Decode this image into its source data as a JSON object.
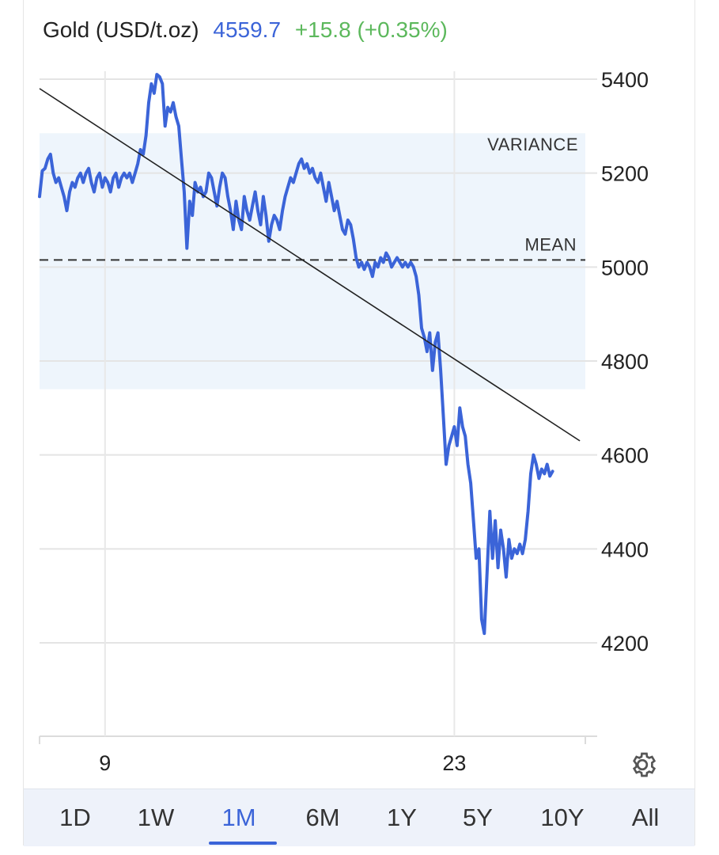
{
  "header": {
    "title": "Gold (USD/t.oz)",
    "price": "4559.7",
    "change": "+15.8 (+0.35%)",
    "price_color": "#3b64d8",
    "change_color": "#5cb85c"
  },
  "annotations": {
    "variance_label": "VARIANCE",
    "mean_label": "MEAN",
    "mean_value": 5015,
    "variance_band": [
      4740,
      5285
    ]
  },
  "settings_icon": "gear-icon",
  "range_tabs": [
    {
      "label": "1D",
      "active": false
    },
    {
      "label": "1W",
      "active": false
    },
    {
      "label": "1M",
      "active": true
    },
    {
      "label": "6M",
      "active": false
    },
    {
      "label": "1Y",
      "active": false
    },
    {
      "label": "5Y",
      "active": false
    },
    {
      "label": "10Y",
      "active": false
    },
    {
      "label": "All",
      "active": false
    }
  ],
  "chart_data": {
    "type": "line",
    "title": "Gold (USD/t.oz)",
    "xlabel": "",
    "ylabel": "",
    "ylim": [
      4000,
      5400
    ],
    "y_ticks": [
      4200,
      4400,
      4600,
      4800,
      5000,
      5200,
      5400
    ],
    "x_ticks": [
      {
        "label": "9",
        "x": 12
      },
      {
        "label": "23",
        "x": 76
      }
    ],
    "xlim": [
      0,
      100
    ],
    "grid": true,
    "line_color": "#3b64d8",
    "trendline": {
      "start": [
        0,
        5380
      ],
      "end": [
        99,
        4630
      ]
    },
    "series": [
      {
        "values": [
          [
            0,
            5150
          ],
          [
            0.5,
            5205
          ],
          [
            1,
            5210
          ],
          [
            1.5,
            5230
          ],
          [
            2,
            5240
          ],
          [
            2.5,
            5200
          ],
          [
            3,
            5180
          ],
          [
            3.5,
            5190
          ],
          [
            4,
            5170
          ],
          [
            4.5,
            5150
          ],
          [
            5,
            5120
          ],
          [
            5.5,
            5160
          ],
          [
            6,
            5180
          ],
          [
            6.5,
            5170
          ],
          [
            7,
            5190
          ],
          [
            7.5,
            5200
          ],
          [
            8,
            5180
          ],
          [
            8.5,
            5200
          ],
          [
            9,
            5210
          ],
          [
            9.5,
            5180
          ],
          [
            10,
            5160
          ],
          [
            10.5,
            5190
          ],
          [
            11,
            5200
          ],
          [
            11.5,
            5170
          ],
          [
            12,
            5190
          ],
          [
            12.5,
            5180
          ],
          [
            13,
            5160
          ],
          [
            13.5,
            5190
          ],
          [
            14,
            5200
          ],
          [
            14.5,
            5170
          ],
          [
            15,
            5190
          ],
          [
            15.5,
            5200
          ],
          [
            16,
            5190
          ],
          [
            16.5,
            5200
          ],
          [
            17,
            5180
          ],
          [
            17.5,
            5200
          ],
          [
            18,
            5220
          ],
          [
            18.5,
            5250
          ],
          [
            19,
            5240
          ],
          [
            19.5,
            5280
          ],
          [
            20,
            5350
          ],
          [
            20.5,
            5390
          ],
          [
            21,
            5370
          ],
          [
            21.5,
            5410
          ],
          [
            22,
            5405
          ],
          [
            22.5,
            5390
          ],
          [
            23,
            5300
          ],
          [
            23.5,
            5340
          ],
          [
            24,
            5330
          ],
          [
            24.5,
            5350
          ],
          [
            25,
            5320
          ],
          [
            25.5,
            5300
          ],
          [
            26,
            5230
          ],
          [
            26.5,
            5160
          ],
          [
            27,
            5040
          ],
          [
            27.5,
            5140
          ],
          [
            28,
            5110
          ],
          [
            28.5,
            5180
          ],
          [
            29,
            5160
          ],
          [
            29.5,
            5170
          ],
          [
            30,
            5150
          ],
          [
            30.5,
            5160
          ],
          [
            31,
            5200
          ],
          [
            31.5,
            5190
          ],
          [
            32,
            5160
          ],
          [
            32.5,
            5130
          ],
          [
            33,
            5170
          ],
          [
            33.5,
            5200
          ],
          [
            34,
            5190
          ],
          [
            34.5,
            5150
          ],
          [
            35,
            5120
          ],
          [
            35.5,
            5080
          ],
          [
            36,
            5140
          ],
          [
            36.5,
            5100
          ],
          [
            37,
            5080
          ],
          [
            37.5,
            5150
          ],
          [
            38,
            5120
          ],
          [
            38.5,
            5100
          ],
          [
            39,
            5130
          ],
          [
            39.5,
            5160
          ],
          [
            40,
            5120
          ],
          [
            40.5,
            5090
          ],
          [
            41,
            5150
          ],
          [
            41.5,
            5110
          ],
          [
            42,
            5055
          ],
          [
            42.5,
            5090
          ],
          [
            43,
            5110
          ],
          [
            43.5,
            5100
          ],
          [
            44,
            5080
          ],
          [
            44.5,
            5120
          ],
          [
            45,
            5150
          ],
          [
            45.5,
            5170
          ],
          [
            46,
            5190
          ],
          [
            46.5,
            5180
          ],
          [
            47,
            5200
          ],
          [
            47.5,
            5220
          ],
          [
            48,
            5230
          ],
          [
            48.5,
            5210
          ],
          [
            49,
            5220
          ],
          [
            49.5,
            5200
          ],
          [
            50,
            5210
          ],
          [
            50.5,
            5190
          ],
          [
            51,
            5180
          ],
          [
            51.5,
            5200
          ],
          [
            52,
            5170
          ],
          [
            52.5,
            5140
          ],
          [
            53,
            5180
          ],
          [
            53.5,
            5150
          ],
          [
            54,
            5120
          ],
          [
            54.5,
            5140
          ],
          [
            55,
            5110
          ],
          [
            55.5,
            5080
          ],
          [
            56,
            5070
          ],
          [
            56.5,
            5100
          ],
          [
            57,
            5090
          ],
          [
            57.5,
            5060
          ],
          [
            58,
            5020
          ],
          [
            58.5,
            5000
          ],
          [
            59,
            5010
          ],
          [
            59.5,
            4995
          ],
          [
            60,
            5010
          ],
          [
            60.5,
            5000
          ],
          [
            61,
            4980
          ],
          [
            61.5,
            5010
          ],
          [
            62,
            5000
          ],
          [
            62.5,
            5020
          ],
          [
            63,
            5010
          ],
          [
            63.5,
            5030
          ],
          [
            64,
            5020
          ],
          [
            64.5,
            5000
          ],
          [
            65,
            5010
          ],
          [
            65.5,
            5020
          ],
          [
            66,
            5010
          ],
          [
            66.5,
            5000
          ],
          [
            67,
            5010
          ],
          [
            67.5,
            5000
          ],
          [
            68,
            5010
          ],
          [
            68.5,
            5000
          ],
          [
            69,
            4980
          ],
          [
            69.5,
            4940
          ],
          [
            70,
            4870
          ],
          [
            70.5,
            4850
          ],
          [
            71,
            4820
          ],
          [
            71.5,
            4860
          ],
          [
            72,
            4780
          ],
          [
            72.5,
            4840
          ],
          [
            73,
            4860
          ],
          [
            73.5,
            4780
          ],
          [
            74,
            4680
          ],
          [
            74.5,
            4580
          ],
          [
            75,
            4620
          ],
          [
            75.5,
            4640
          ],
          [
            76,
            4660
          ],
          [
            76.5,
            4620
          ],
          [
            77,
            4700
          ],
          [
            77.5,
            4660
          ],
          [
            78,
            4640
          ],
          [
            78.5,
            4580
          ],
          [
            79,
            4540
          ],
          [
            79.5,
            4460
          ],
          [
            80,
            4380
          ],
          [
            80.5,
            4400
          ],
          [
            81,
            4250
          ],
          [
            81.5,
            4220
          ],
          [
            82,
            4350
          ],
          [
            82.5,
            4480
          ],
          [
            83,
            4380
          ],
          [
            83.5,
            4460
          ],
          [
            84,
            4360
          ],
          [
            84.5,
            4440
          ],
          [
            85,
            4400
          ],
          [
            85.5,
            4340
          ],
          [
            86,
            4420
          ],
          [
            86.5,
            4380
          ],
          [
            87,
            4400
          ],
          [
            87.5,
            4390
          ],
          [
            88,
            4410
          ],
          [
            88.5,
            4390
          ],
          [
            89,
            4420
          ],
          [
            89.5,
            4480
          ],
          [
            90,
            4560
          ],
          [
            90.5,
            4600
          ],
          [
            91,
            4580
          ],
          [
            91.5,
            4550
          ],
          [
            92,
            4570
          ],
          [
            92.5,
            4560
          ],
          [
            93,
            4580
          ],
          [
            93.5,
            4555
          ],
          [
            94,
            4565
          ]
        ]
      }
    ]
  }
}
